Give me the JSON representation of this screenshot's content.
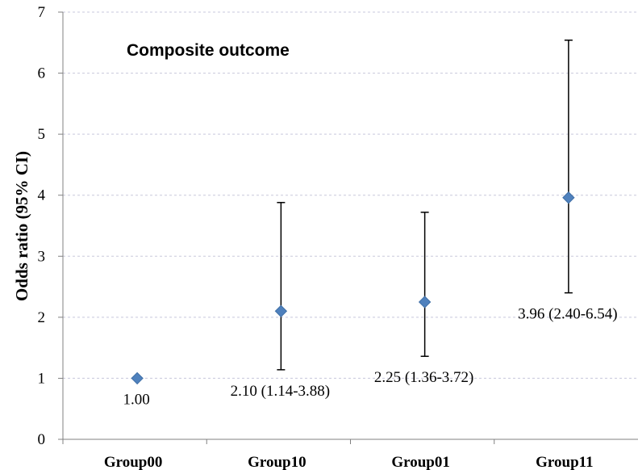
{
  "chart_data": {
    "type": "scatter",
    "title": "Composite outcome",
    "xlabel": "",
    "ylabel": "Odds ratio (95% CI)",
    "ylim": [
      0,
      7
    ],
    "yticks": [
      "0",
      "1",
      "2",
      "3",
      "4",
      "5",
      "6",
      "7"
    ],
    "grid": true,
    "categories": [
      "Group00",
      "Group10",
      "Group01",
      "Group11"
    ],
    "values": [
      1.0,
      2.1,
      2.25,
      3.96
    ],
    "ci_lower": [
      null,
      1.14,
      1.36,
      2.4
    ],
    "ci_upper": [
      null,
      3.88,
      3.72,
      6.54
    ],
    "labels": [
      "1.00",
      "2.10 (1.14-3.88)",
      "2.25 (1.36-3.72)",
      "3.96 (2.40-6.54)"
    ],
    "marker_color": "#4f81bd"
  }
}
